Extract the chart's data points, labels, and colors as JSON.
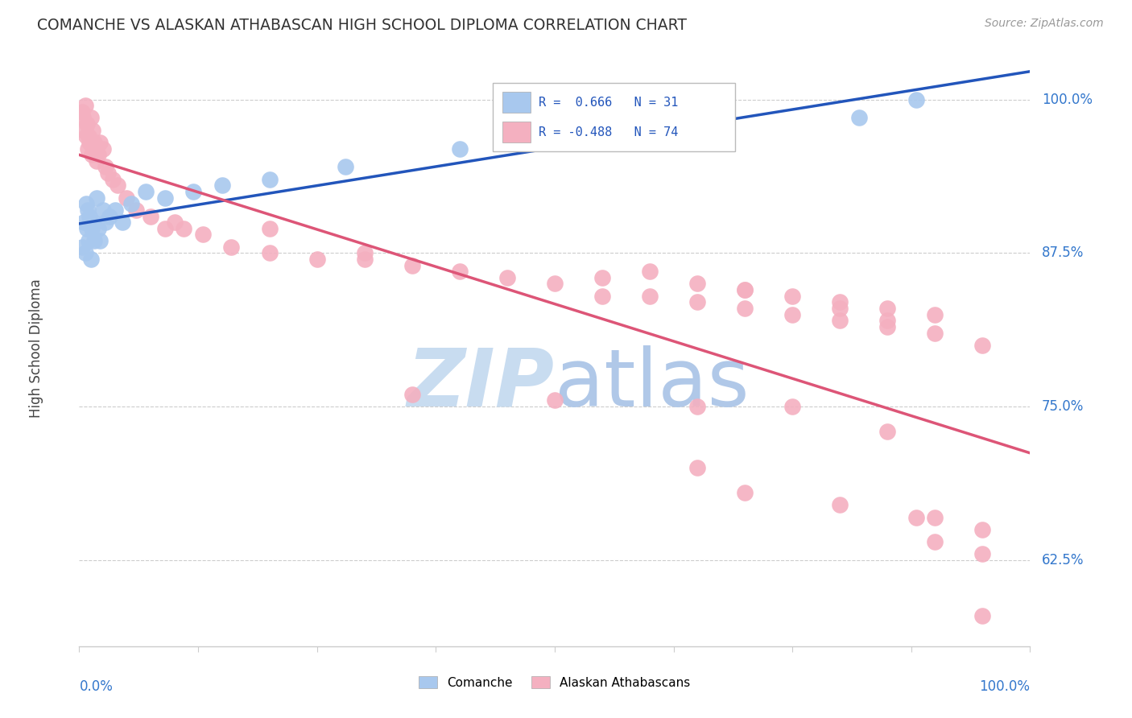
{
  "title": "COMANCHE VS ALASKAN ATHABASCAN HIGH SCHOOL DIPLOMA CORRELATION CHART",
  "source": "Source: ZipAtlas.com",
  "ylabel": "High School Diploma",
  "legend_blue_label": "Comanche",
  "legend_pink_label": "Alaskan Athabascans",
  "comanche_color": "#A8C8EE",
  "comanche_edge": "#90B8E0",
  "alaskan_color": "#F4B0C0",
  "alaskan_edge": "#E898A8",
  "trend_blue": "#2255BB",
  "trend_pink": "#DD5577",
  "watermark_color": "#C8DCF0",
  "ytick_labels": [
    "62.5%",
    "75.0%",
    "87.5%",
    "100.0%"
  ],
  "ytick_values": [
    0.625,
    0.75,
    0.875,
    1.0
  ],
  "xlim": [
    0.0,
    1.0
  ],
  "ylim": [
    0.555,
    1.04
  ],
  "comanche_x": [
    0.003,
    0.005,
    0.006,
    0.007,
    0.008,
    0.009,
    0.01,
    0.011,
    0.012,
    0.013,
    0.015,
    0.016,
    0.018,
    0.02,
    0.022,
    0.025,
    0.028,
    0.032,
    0.038,
    0.045,
    0.055,
    0.07,
    0.09,
    0.12,
    0.15,
    0.2,
    0.28,
    0.4,
    0.55,
    0.82,
    0.88
  ],
  "comanche_y": [
    0.88,
    0.9,
    0.875,
    0.915,
    0.895,
    0.91,
    0.885,
    0.905,
    0.87,
    0.895,
    0.9,
    0.885,
    0.92,
    0.895,
    0.885,
    0.91,
    0.9,
    0.905,
    0.91,
    0.9,
    0.915,
    0.925,
    0.92,
    0.925,
    0.93,
    0.935,
    0.945,
    0.96,
    0.975,
    0.985,
    1.0
  ],
  "alaskan_x": [
    0.003,
    0.004,
    0.005,
    0.006,
    0.007,
    0.008,
    0.009,
    0.01,
    0.011,
    0.012,
    0.013,
    0.014,
    0.015,
    0.016,
    0.018,
    0.02,
    0.022,
    0.025,
    0.028,
    0.03,
    0.035,
    0.04,
    0.05,
    0.06,
    0.075,
    0.09,
    0.11,
    0.13,
    0.16,
    0.2,
    0.25,
    0.3,
    0.35,
    0.4,
    0.45,
    0.5,
    0.55,
    0.6,
    0.65,
    0.7,
    0.75,
    0.8,
    0.85,
    0.9,
    0.95,
    0.1,
    0.2,
    0.3,
    0.55,
    0.7,
    0.75,
    0.8,
    0.85,
    0.9,
    0.6,
    0.65,
    0.7,
    0.8,
    0.85,
    0.35,
    0.5,
    0.65,
    0.75,
    0.85,
    0.9,
    0.95,
    0.7,
    0.8,
    0.88,
    0.95,
    0.65,
    0.9,
    0.95
  ],
  "alaskan_y": [
    0.99,
    0.985,
    0.975,
    0.995,
    0.97,
    0.98,
    0.96,
    0.97,
    0.965,
    0.985,
    0.955,
    0.975,
    0.96,
    0.965,
    0.95,
    0.955,
    0.965,
    0.96,
    0.945,
    0.94,
    0.935,
    0.93,
    0.92,
    0.91,
    0.905,
    0.895,
    0.895,
    0.89,
    0.88,
    0.875,
    0.87,
    0.87,
    0.865,
    0.86,
    0.855,
    0.85,
    0.84,
    0.84,
    0.835,
    0.83,
    0.825,
    0.82,
    0.815,
    0.81,
    0.8,
    0.9,
    0.895,
    0.875,
    0.855,
    0.845,
    0.84,
    0.835,
    0.83,
    0.825,
    0.86,
    0.85,
    0.845,
    0.83,
    0.82,
    0.76,
    0.755,
    0.75,
    0.75,
    0.73,
    0.66,
    0.58,
    0.68,
    0.67,
    0.66,
    0.65,
    0.7,
    0.64,
    0.63
  ]
}
